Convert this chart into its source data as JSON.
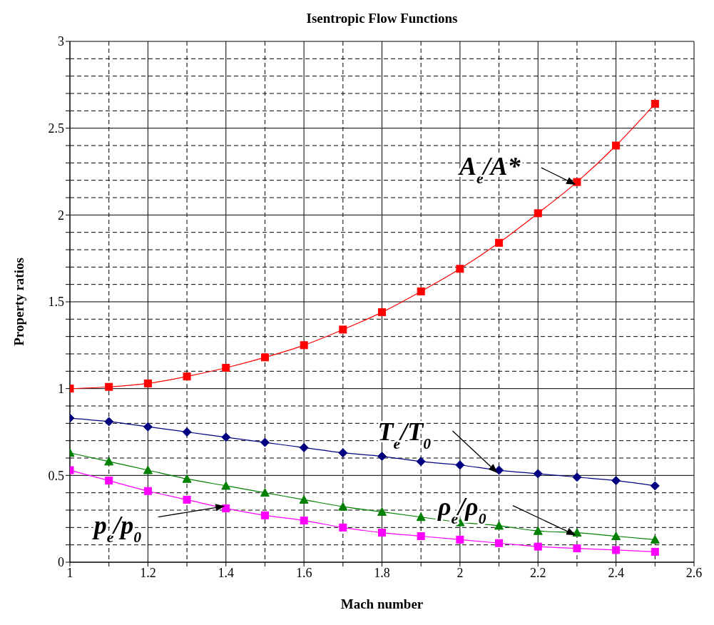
{
  "chart_data": {
    "type": "line",
    "title": "Isentropic Flow Functions",
    "xlabel": "Mach number",
    "ylabel": "Property ratios",
    "x": [
      1,
      1.1,
      1.2,
      1.3,
      1.4,
      1.5,
      1.6,
      1.7,
      1.8,
      1.9,
      2,
      2.1,
      2.2,
      2.3,
      2.4,
      2.5
    ],
    "series": [
      {
        "color": "#ff0000",
        "marker": "square",
        "values": [
          1.0,
          1.01,
          1.03,
          1.07,
          1.12,
          1.18,
          1.25,
          1.34,
          1.44,
          1.56,
          1.69,
          1.84,
          2.01,
          2.19,
          2.4,
          2.64
        ]
      },
      {
        "color": "#000080",
        "marker": "diamond",
        "values": [
          0.83,
          0.81,
          0.78,
          0.75,
          0.72,
          0.69,
          0.66,
          0.63,
          0.61,
          0.58,
          0.56,
          0.53,
          0.51,
          0.49,
          0.47,
          0.44
        ]
      },
      {
        "color": "#008000",
        "marker": "triangle",
        "values": [
          0.63,
          0.58,
          0.53,
          0.48,
          0.44,
          0.4,
          0.36,
          0.32,
          0.29,
          0.26,
          0.23,
          0.21,
          0.18,
          0.17,
          0.15,
          0.13
        ]
      },
      {
        "color": "#ff00ff",
        "marker": "square",
        "values": [
          0.53,
          0.47,
          0.41,
          0.36,
          0.31,
          0.27,
          0.24,
          0.2,
          0.17,
          0.15,
          0.13,
          0.11,
          0.09,
          0.08,
          0.07,
          0.06
        ]
      }
    ],
    "xlim": [
      1,
      2.6
    ],
    "xticks": [
      1,
      {
        "value": 1.1,
        "label": null
      },
      1.2,
      {
        "value": 1.3,
        "label": null
      },
      1.4,
      {
        "value": 1.5,
        "label": null
      },
      1.6,
      {
        "value": 1.7,
        "label": null
      },
      1.8,
      {
        "value": 1.9,
        "label": null
      },
      2,
      {
        "value": 2.1,
        "label": null
      },
      2.2,
      {
        "value": 2.3,
        "label": null
      },
      2.4,
      {
        "value": 2.5,
        "label": null
      },
      2.6
    ],
    "ylim": [
      0,
      3
    ],
    "yticks": [
      0,
      {
        "value": 0.1,
        "label": null
      },
      {
        "value": 0.2,
        "label": null
      },
      {
        "value": 0.3,
        "label": null
      },
      {
        "value": 0.4,
        "label": null
      },
      0.5,
      {
        "value": 0.6,
        "label": null
      },
      {
        "value": 0.7,
        "label": null
      },
      {
        "value": 0.8,
        "label": null
      },
      {
        "value": 0.9,
        "label": null
      },
      1,
      {
        "value": 1.1,
        "label": null
      },
      {
        "value": 1.2,
        "label": null
      },
      {
        "value": 1.3,
        "label": null
      },
      {
        "value": 1.4,
        "label": null
      },
      1.5,
      {
        "value": 1.6,
        "label": null
      },
      {
        "value": 1.7,
        "label": null
      },
      {
        "value": 1.8,
        "label": null
      },
      {
        "value": 1.9,
        "label": null
      },
      2,
      {
        "value": 2.1,
        "label": null
      },
      {
        "value": 2.2,
        "label": null
      },
      {
        "value": 2.3,
        "label": null
      },
      {
        "value": 2.4,
        "label": null
      },
      2.5,
      {
        "value": 2.6,
        "label": null
      },
      {
        "value": 2.7,
        "label": null
      },
      {
        "value": 2.8,
        "label": null
      },
      {
        "value": 2.9,
        "label": null
      },
      3
    ],
    "grid": true,
    "legend": false,
    "annotations": [
      {
        "text": "A$_{e}$/A*",
        "x": 2.3,
        "y": 2.19
      },
      {
        "text": "T$_{e}$/T$_{0}$",
        "x": 2.1,
        "y": 0.53
      },
      {
        "text": "ρ$_{e}$/ρ$_{0}$",
        "x": 2.3,
        "y": 0.17
      },
      {
        "text": "p$_{e}$/p$_{0}$",
        "x": 1.4,
        "y": 0.31
      }
    ]
  }
}
